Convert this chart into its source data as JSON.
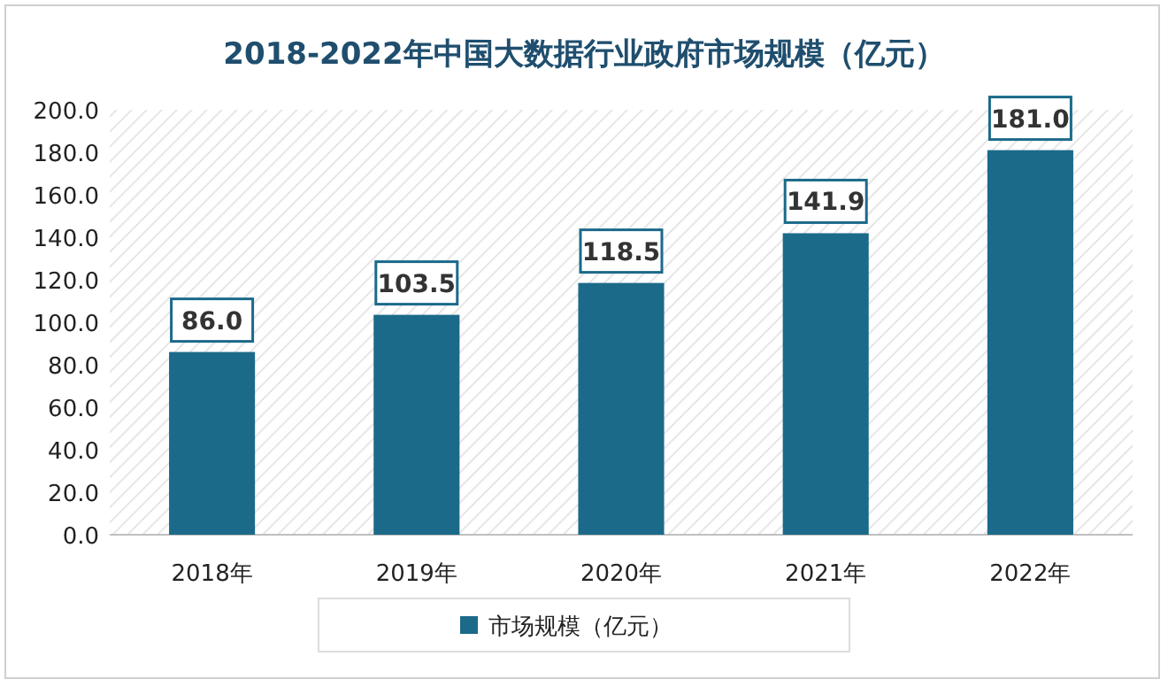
{
  "chart_data": {
    "type": "bar",
    "title": "2018-2022年中国大数据行业政府市场规模（亿元）",
    "categories": [
      "2018年",
      "2019年",
      "2020年",
      "2021年",
      "2022年"
    ],
    "series": [
      {
        "name": "市场规模（亿元）",
        "color": "#1b6a8a",
        "values": [
          86.0,
          103.5,
          118.5,
          141.9,
          181.0
        ],
        "value_labels": [
          "86.0",
          "103.5",
          "118.5",
          "141.9",
          "181.0"
        ]
      }
    ],
    "ylim": [
      0,
      200
    ],
    "yticks": [
      {
        "value": 0,
        "label": "0.0"
      },
      {
        "value": 20,
        "label": "20.0"
      },
      {
        "value": 40,
        "label": "40.0"
      },
      {
        "value": 60,
        "label": "60.0"
      },
      {
        "value": 80,
        "label": "80.0"
      },
      {
        "value": 100,
        "label": "100.0"
      },
      {
        "value": 120,
        "label": "120.0"
      },
      {
        "value": 140,
        "label": "140.0"
      },
      {
        "value": 160,
        "label": "160.0"
      },
      {
        "value": 180,
        "label": "180.0"
      },
      {
        "value": 200,
        "label": "200.0"
      }
    ],
    "legend": "bottom"
  }
}
